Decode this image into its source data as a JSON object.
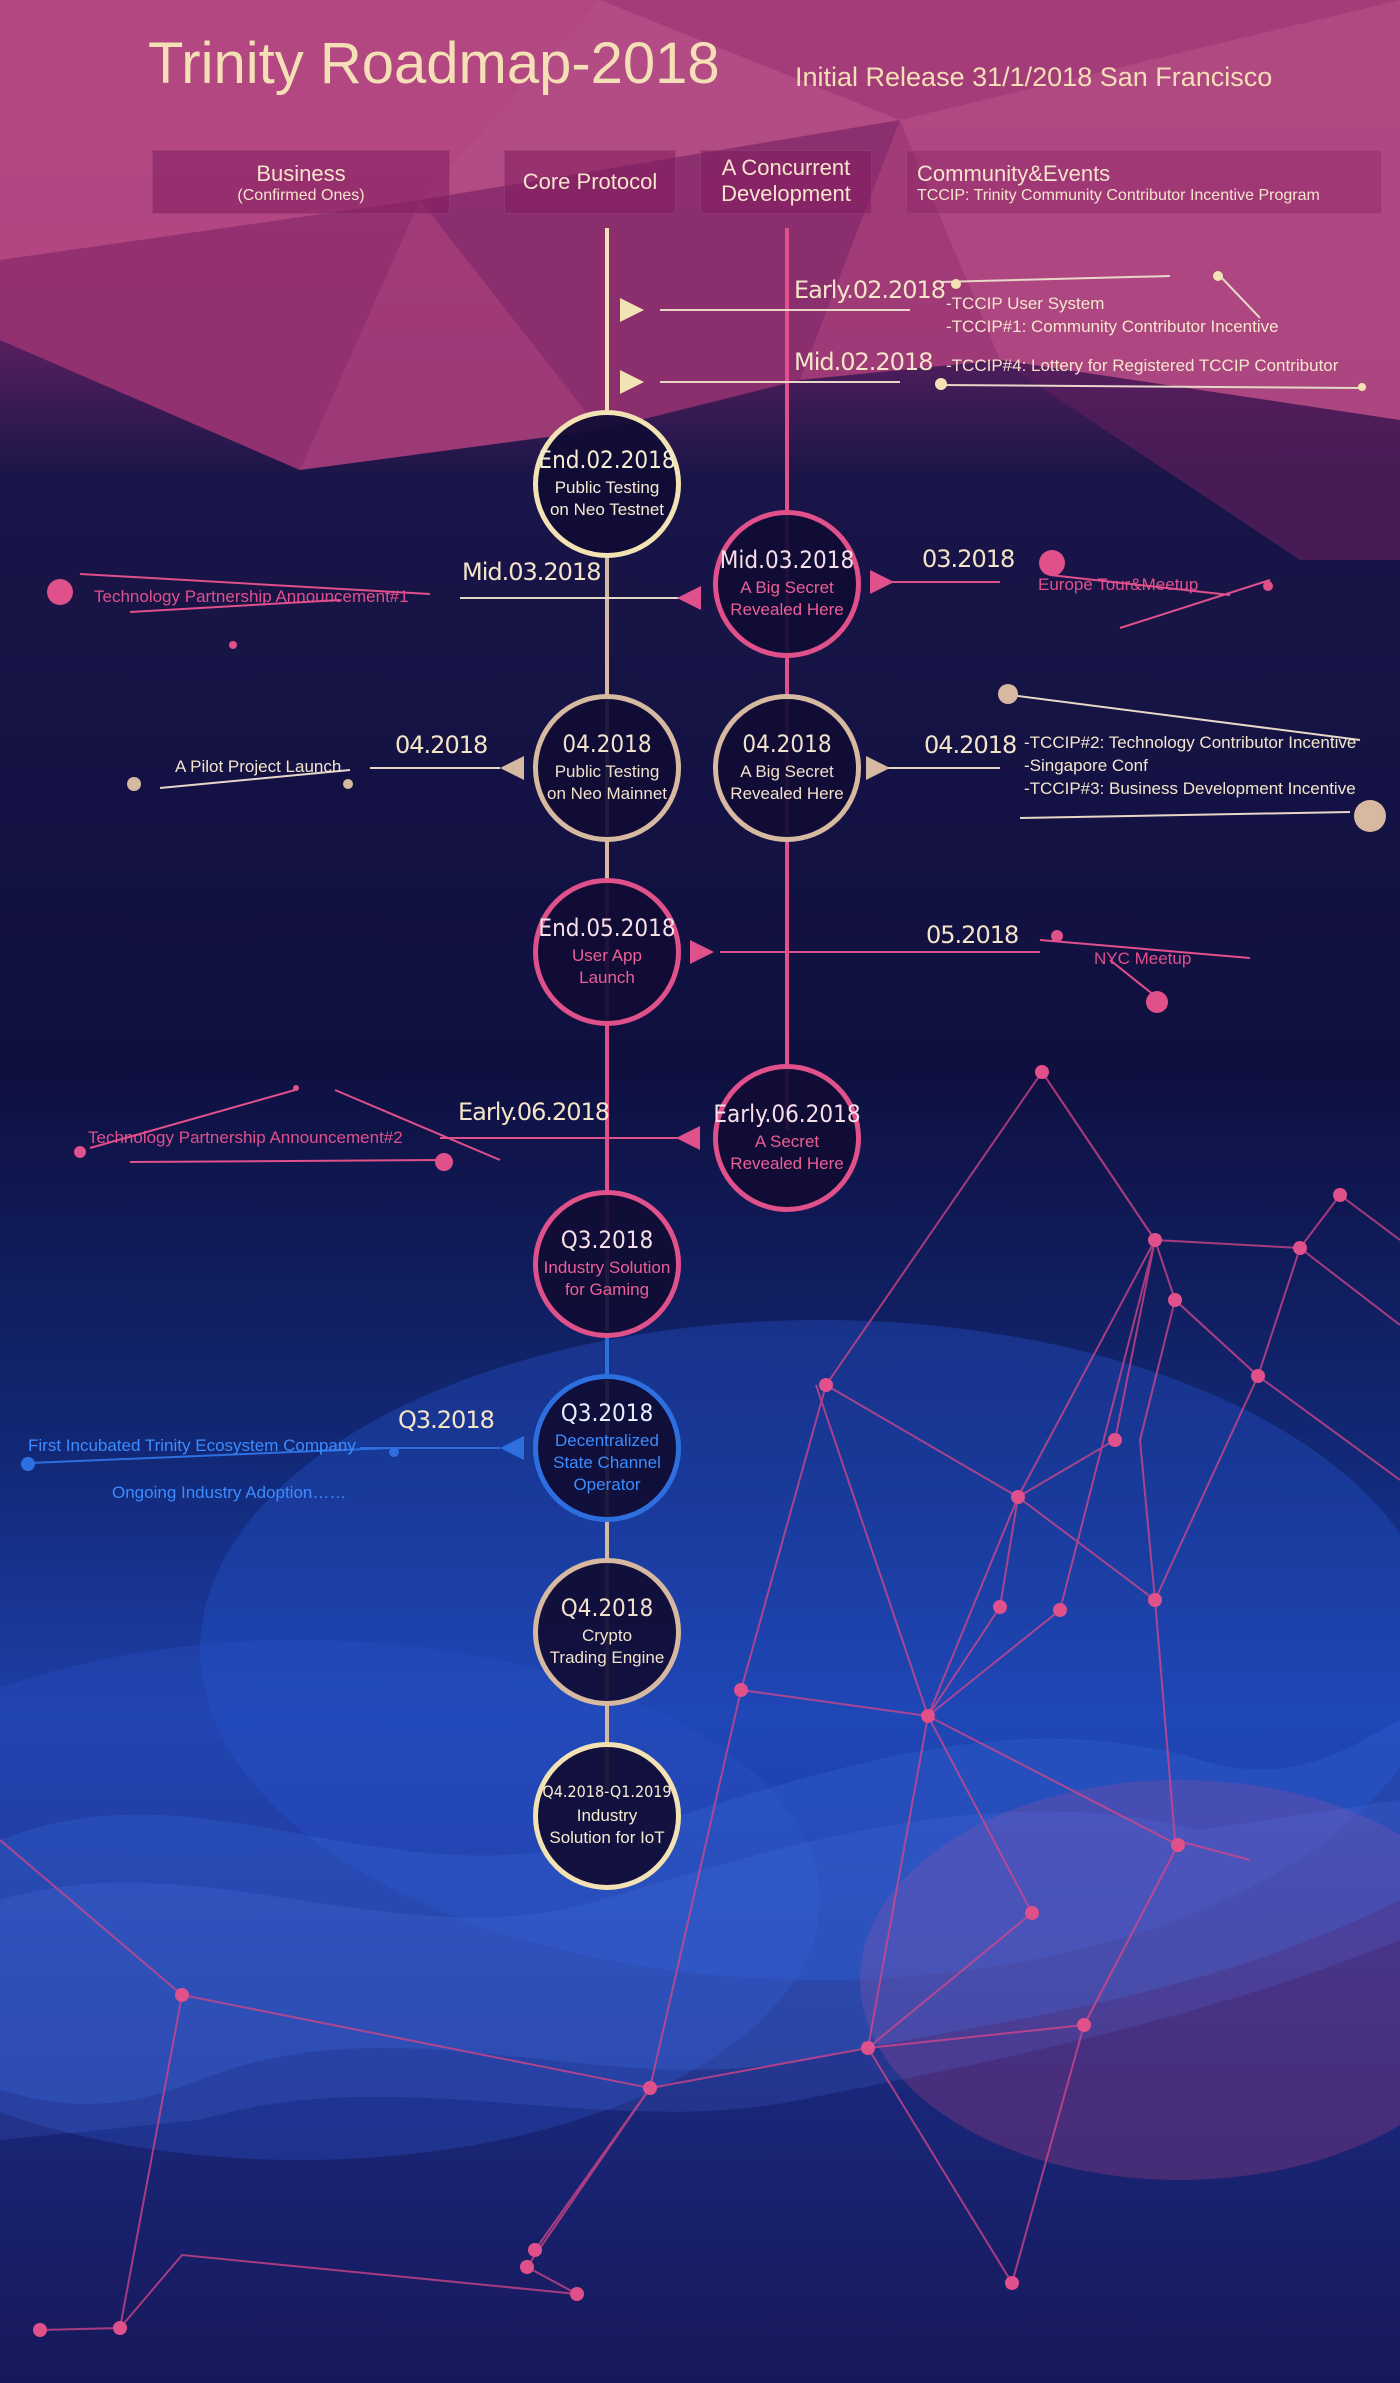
{
  "header": {
    "title": "Trinity Roadmap-2018",
    "subtitle": "Initial Release 31/1/2018 San Francisco"
  },
  "columns": {
    "business": {
      "label": "Business",
      "sub": "(Confirmed Ones)"
    },
    "core": {
      "label": "Core Protocol"
    },
    "concurrent": {
      "line1": "A Concurrent",
      "line2": "Development"
    },
    "community": {
      "label": "Community&Events",
      "sub": "TCCIP: Trinity Community Contributor Incentive Program"
    }
  },
  "core_nodes": [
    {
      "date": "End.02.2018",
      "line1": "Public Testing",
      "line2": "on Neo Testnet"
    },
    {
      "date": "04.2018",
      "line1": "Public Testing",
      "line2": "on Neo Mainnet"
    },
    {
      "date": "End.05.2018",
      "line1": "User App",
      "line2": "Launch"
    },
    {
      "date": "Q3.2018",
      "line1": "Industry Solution",
      "line2": "for Gaming"
    },
    {
      "date": "Q3.2018",
      "line1": "Decentralized",
      "line2": "State Channel",
      "line3": "Operator"
    },
    {
      "date": "Q4.2018",
      "line1": "Crypto",
      "line2": "Trading Engine"
    },
    {
      "date": "Q4.2018-Q1.2019",
      "line1": "Industry",
      "line2": "Solution for IoT"
    }
  ],
  "concurrent_nodes": [
    {
      "date": "Mid.03.2018",
      "line1": "A Big Secret",
      "line2": "Revealed Here"
    },
    {
      "date": "04.2018",
      "line1": "A Big Secret",
      "line2": "Revealed Here"
    },
    {
      "date": "Early.06.2018",
      "line1": "A Secret",
      "line2": "Revealed Here"
    }
  ],
  "dates": {
    "early02": "Early.02.2018",
    "mid02": "Mid.02.2018",
    "mid03": "Mid.03.2018",
    "m03": "03.2018",
    "apr_left": "04.2018",
    "apr_right": "04.2018",
    "may": "05.2018",
    "early06": "Early.06.2018",
    "q3": "Q3.2018"
  },
  "events": {
    "tccip_user": "-TCCIP User System",
    "tccip1": "-TCCIP#1: Community Contributor Incentive",
    "tccip4": "-TCCIP#4: Lottery for Registered TCCIP Contributor",
    "tech_partner1": "Technology Partnership Announcement#1",
    "europe": "Europe Tour&Meetup",
    "pilot": "A Pilot Project Launch",
    "tccip2": "-TCCIP#2: Technology Contributor Incentive",
    "singapore": "-Singapore Conf",
    "tccip3": "-TCCIP#3: Business Development Incentive",
    "nyc": "NYC Meetup",
    "tech_partner2": "Technology Partnership Announcement#2",
    "first_incubated": "First Incubated Trinity Ecosystem Company",
    "ongoing": "Ongoing Industry Adoption……"
  },
  "colors": {
    "cream": "#f2e2b4",
    "pink": "#e0508a",
    "blue": "#2e6fe0",
    "title": "#f5dfb6"
  }
}
